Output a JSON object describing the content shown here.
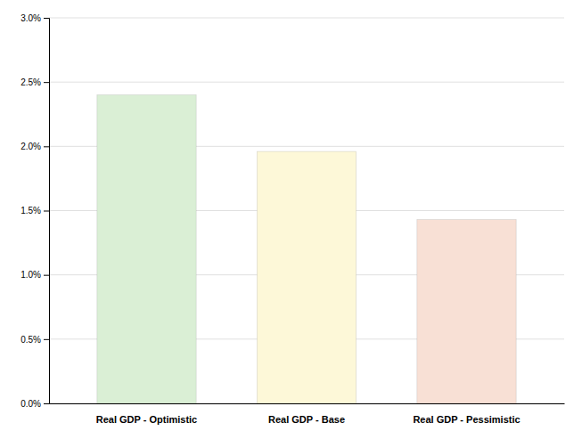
{
  "chart_data": {
    "type": "bar",
    "categories": [
      "Real GDP - Optimistic",
      "Real GDP - Base",
      "Real GDP - Pessimistic"
    ],
    "values": [
      0.024,
      0.0196,
      0.0143
    ],
    "colors": [
      "#daefd5",
      "#fdf8d8",
      "#f8e0d5"
    ],
    "ylim": [
      0,
      0.03
    ],
    "yticks": [
      {
        "value": 0.0,
        "label": "0.0%"
      },
      {
        "value": 0.005,
        "label": "0.5%"
      },
      {
        "value": 0.01,
        "label": "1.0%"
      },
      {
        "value": 0.015,
        "label": "1.5%"
      },
      {
        "value": 0.02,
        "label": "2.0%"
      },
      {
        "value": 0.025,
        "label": "2.5%"
      },
      {
        "value": 0.03,
        "label": "3.0%"
      }
    ],
    "grid": true
  }
}
